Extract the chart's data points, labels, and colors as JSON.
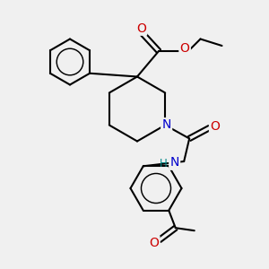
{
  "bg_color": "#f0f0f0",
  "bond_color": "#000000",
  "bond_width": 1.5,
  "N_color": "#0000cc",
  "O_color": "#cc0000",
  "H_color": "#008888",
  "figsize": [
    3.0,
    3.0
  ],
  "dpi": 100,
  "xlim": [
    0,
    10
  ],
  "ylim": [
    0,
    10
  ]
}
